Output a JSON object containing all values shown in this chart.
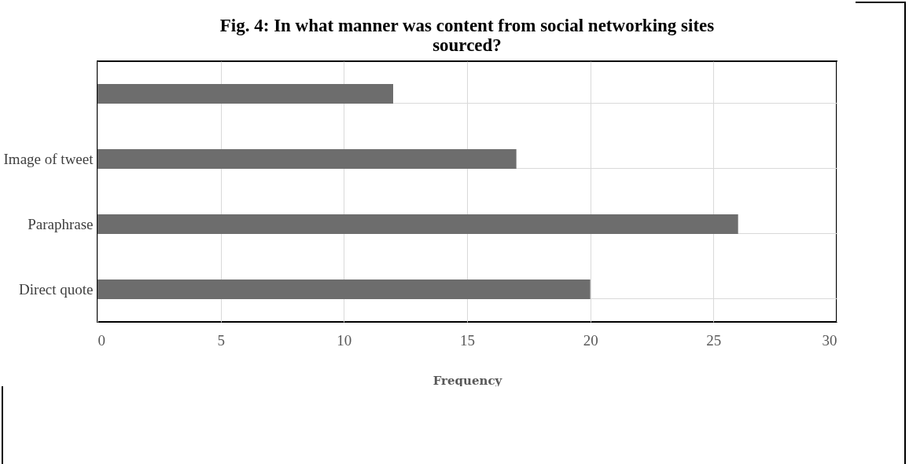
{
  "chart_data": {
    "type": "bar",
    "orientation": "horizontal",
    "title": [
      "Fig. 4: In what manner was content from social networking sites",
      "sourced?"
    ],
    "categories": [
      null,
      "Image of tweet",
      "Paraphrase",
      "Direct quote"
    ],
    "values": [
      12,
      17,
      26,
      20
    ],
    "color": "#6d6d6d",
    "xlim": [
      0,
      30
    ],
    "xticks": [
      0,
      5,
      10,
      15,
      20,
      25,
      30
    ],
    "xlabel": "Frequency",
    "grid": true
  }
}
